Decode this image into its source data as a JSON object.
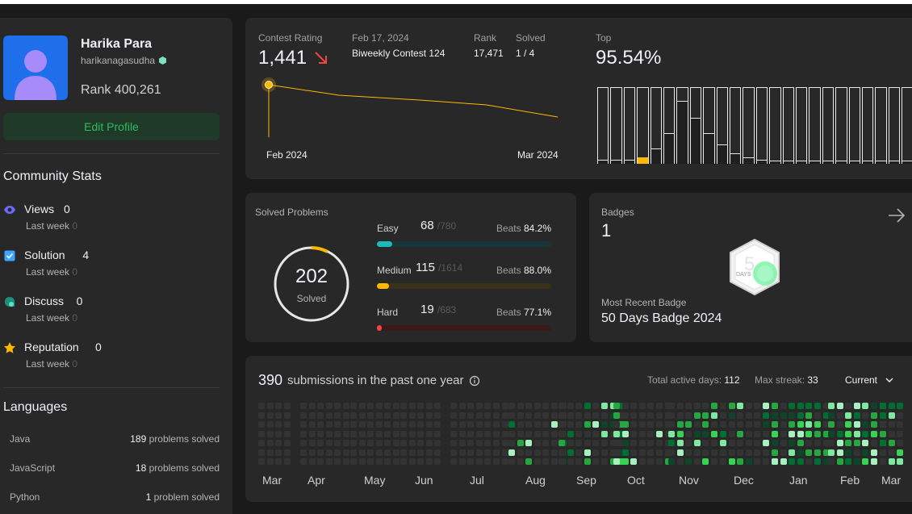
{
  "profile": {
    "name": "Harika Para",
    "username": "harikanagasudha",
    "rank_label": "Rank",
    "rank_value": "400,261",
    "edit_button": "Edit Profile"
  },
  "community": {
    "title": "Community Stats",
    "sub_label": "Last week",
    "items": [
      {
        "label": "Views",
        "value": "0",
        "last_week": "0",
        "icon": "eye-icon",
        "color": "#6b6bff"
      },
      {
        "label": "Solution",
        "value": "4",
        "last_week": "0",
        "icon": "checkbox-icon",
        "color": "#3ea6ff"
      },
      {
        "label": "Discuss",
        "value": "0",
        "last_week": "0",
        "icon": "chat-icon",
        "color": "#1c8f7a"
      },
      {
        "label": "Reputation",
        "value": "0",
        "last_week": "0",
        "icon": "star-icon",
        "color": "#ffb800"
      }
    ]
  },
  "languages": {
    "title": "Languages",
    "items": [
      {
        "name": "Java",
        "count": "189",
        "suffix": "problems solved"
      },
      {
        "name": "JavaScript",
        "count": "18",
        "suffix": "problems solved"
      },
      {
        "name": "Python",
        "count": "1",
        "suffix": "problem solved"
      }
    ]
  },
  "contest": {
    "rating_label": "Contest Rating",
    "rating_value": "1,441",
    "date": "Feb 17, 2024",
    "contest_name": "Biweekly Contest 124",
    "rank_label": "Rank",
    "rank_value": "17,471",
    "solved_label": "Solved",
    "solved_value": "1 / 4",
    "top_label": "Top",
    "top_value": "95.54%",
    "x_start": "Feb 2024",
    "x_end": "Mar 2024",
    "histogram": [
      0.05,
      0.05,
      0.05,
      0.08,
      0.2,
      0.4,
      0.82,
      0.6,
      0.4,
      0.25,
      0.14,
      0.08,
      0.05,
      0.04,
      0.03,
      0.03,
      0.03,
      0.03,
      0.03,
      0.03,
      0.03,
      0.03,
      0.03,
      0.03
    ],
    "highlight_index": 3,
    "highlight_color": "#ffb800"
  },
  "solved": {
    "title": "Solved Problems",
    "total": "202",
    "total_label": "Solved",
    "beats_label": "Beats",
    "rows": [
      {
        "name": "Easy",
        "count": "68",
        "total": "/780",
        "beats": "84.2%",
        "fraction": 0.087,
        "color": "#1cbaba",
        "track": "#18353a"
      },
      {
        "name": "Medium",
        "count": "115",
        "total": "/1614",
        "beats": "88.0%",
        "fraction": 0.071,
        "color": "#ffb800",
        "track": "#3a3218"
      },
      {
        "name": "Hard",
        "count": "19",
        "total": "/683",
        "beats": "77.1%",
        "fraction": 0.028,
        "color": "#ef4743",
        "track": "#3b1a1a"
      }
    ]
  },
  "badges": {
    "title": "Badges",
    "count": "1",
    "recent_label": "Most Recent Badge",
    "recent_name": "50 Days Badge 2024",
    "badge_days": "DAYS"
  },
  "submissions": {
    "count": "390",
    "label": "submissions in the past one year",
    "active_label": "Total active days:",
    "active_value": "112",
    "streak_label": "Max streak:",
    "streak_value": "33",
    "range_select": "Current",
    "months": [
      "Mar",
      "Apr",
      "May",
      "Jun",
      "Jul",
      "Aug",
      "Sep",
      "Oct",
      "Nov",
      "Dec",
      "Jan",
      "Feb",
      "Mar"
    ]
  }
}
